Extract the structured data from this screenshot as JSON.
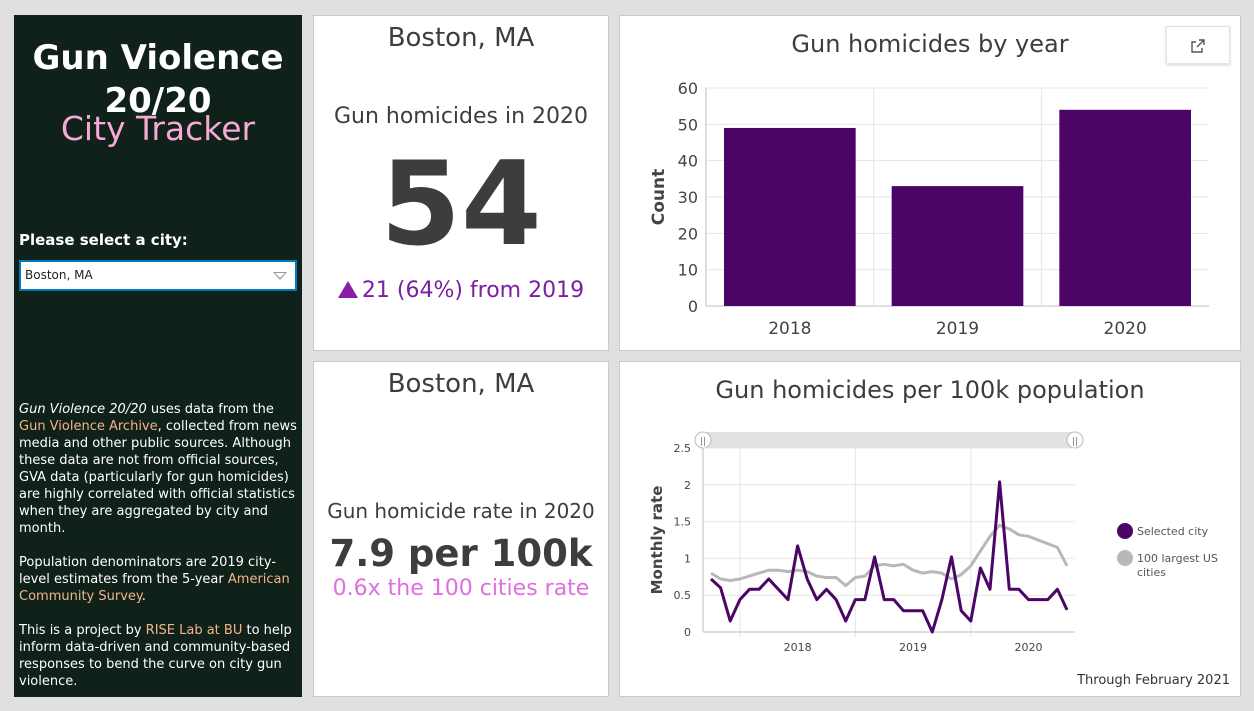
{
  "sidebar": {
    "title": "Gun Violence 20/20",
    "subtitle": "City Tracker",
    "select_label": "Please select a city:",
    "selected_city": "Boston, MA",
    "about": {
      "p1_em": "Gun Violence 20/20",
      "p1_a": " uses data from the ",
      "p1_link": "Gun Violence Archive",
      "p1_b": ", collected from news media and other public sources. Although these data are not from official sources, GVA data (particularly for gun homicides) are highly correlated with official statistics when they are aggregated by city and month.",
      "p2_a": "Population denominators are 2019 city-level estimates from the 5-year ",
      "p2_link": "American Community Survey",
      "p2_b": ".",
      "p3_a": "This is a project by ",
      "p3_link": "RISE Lab at BU",
      "p3_b": " to help inform data-driven and community-based responses to bend the curve on city gun violence."
    }
  },
  "homicide_card": {
    "city": "Boston, MA",
    "label": "Gun homicides in 2020",
    "value": "54",
    "change_text": "21 (64%) from 2019"
  },
  "rate_card": {
    "city": "Boston, MA",
    "label": "Gun homicide rate in 2020",
    "value": "7.9 per 100k",
    "comparison": "0.6x the 100 cities rate"
  },
  "colors": {
    "bar": "#4a0566",
    "selected_city_line": "#4a0566",
    "comparison_line": "#b8b8b8",
    "accent_purple": "#7b1fa2",
    "accent_pink": "#e06ee0",
    "sidebar_bg": "#0f2119"
  },
  "chart_data": [
    {
      "type": "bar",
      "title": "Gun homicides by year",
      "categories": [
        "2018",
        "2019",
        "2020"
      ],
      "values": [
        49,
        33,
        54
      ],
      "xlabel": "",
      "ylabel": "Count",
      "ylim": [
        0,
        60
      ],
      "yticks": [
        0,
        10,
        20,
        30,
        40,
        50,
        60
      ],
      "grid": true,
      "expand_icon": "expand-icon"
    },
    {
      "type": "line",
      "title": "Gun homicides per 100k population",
      "ylabel": "Monthly rate",
      "ylim": [
        0,
        2.5
      ],
      "yticks": [
        0,
        0.5,
        1,
        1.5,
        2,
        2.5
      ],
      "x_tick_labels": [
        "2018",
        "2019",
        "2020"
      ],
      "x_start": "2017-10",
      "x_end": "2021-02",
      "legend_position": "right",
      "grid": true,
      "footnote": "Through February 2021",
      "series": [
        {
          "name": "Selected city",
          "values": [
            0.72,
            0.6,
            0.15,
            0.44,
            0.58,
            0.58,
            0.72,
            0.58,
            0.44,
            1.17,
            0.72,
            0.44,
            0.58,
            0.44,
            0.15,
            0.44,
            0.44,
            1.02,
            0.44,
            0.44,
            0.29,
            0.29,
            0.29,
            0.0,
            0.44,
            1.02,
            0.29,
            0.15,
            0.87,
            0.58,
            2.04,
            0.58,
            0.58,
            0.44,
            0.44,
            0.44,
            0.58,
            0.3
          ]
        },
        {
          "name": "100 largest US cities",
          "values": [
            0.8,
            0.72,
            0.7,
            0.72,
            0.76,
            0.8,
            0.84,
            0.84,
            0.82,
            0.84,
            0.82,
            0.76,
            0.74,
            0.74,
            0.63,
            0.74,
            0.76,
            0.9,
            0.92,
            0.9,
            0.92,
            0.84,
            0.8,
            0.82,
            0.8,
            0.72,
            0.78,
            0.9,
            1.1,
            1.3,
            1.45,
            1.4,
            1.32,
            1.3,
            1.25,
            1.2,
            1.15,
            0.9
          ]
        }
      ]
    }
  ]
}
